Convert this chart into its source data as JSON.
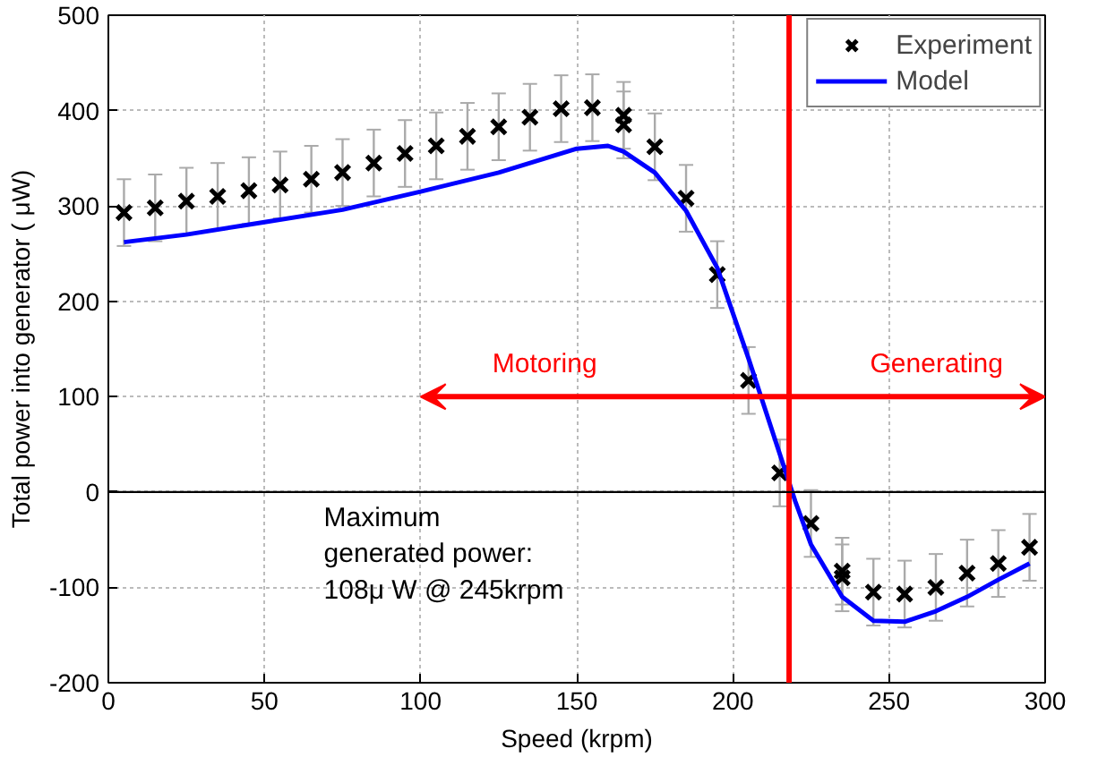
{
  "chart_data": {
    "type": "scatter",
    "xlabel": "Speed (krpm)",
    "ylabel": "Total power into generator ( μW)",
    "xlim": [
      0,
      300
    ],
    "ylim": [
      -200,
      500
    ],
    "xticks": [
      0,
      50,
      100,
      150,
      200,
      250,
      300
    ],
    "yticks": [
      -200,
      -100,
      0,
      100,
      200,
      300,
      400,
      500
    ],
    "grid": true,
    "legend": "top right",
    "series": [
      {
        "name": "Experiment",
        "marker": "cross",
        "color": "#000000",
        "x": [
          5,
          15,
          25,
          35,
          45,
          55,
          65,
          75,
          85,
          95,
          105,
          115,
          125,
          135,
          145,
          155,
          165,
          165,
          175,
          185,
          195,
          205,
          215,
          225,
          235,
          235,
          245,
          255,
          265,
          275,
          285,
          295
        ],
        "values": [
          293,
          298,
          305,
          310,
          316,
          322,
          328,
          335,
          345,
          355,
          363,
          373,
          383,
          393,
          402,
          403,
          395,
          385,
          362,
          308,
          228,
          117,
          20,
          -33,
          -83,
          -90,
          -105,
          -107,
          -100,
          -85,
          -75,
          -58
        ],
        "errors": [
          35,
          35,
          35,
          35,
          35,
          35,
          35,
          35,
          35,
          35,
          35,
          35,
          35,
          35,
          35,
          35,
          35,
          35,
          35,
          35,
          35,
          35,
          35,
          35,
          35,
          35,
          35,
          35,
          35,
          35,
          35,
          35
        ]
      },
      {
        "name": "Model",
        "type": "line",
        "line_style": "solid",
        "color": "#0000ff",
        "x": [
          5,
          25,
          50,
          75,
          100,
          125,
          150,
          160,
          165,
          175,
          185,
          195,
          205,
          215,
          220,
          225,
          235,
          245,
          255,
          265,
          275,
          285,
          295
        ],
        "values": [
          262,
          270,
          283,
          296,
          315,
          335,
          360,
          363,
          357,
          335,
          295,
          235,
          140,
          40,
          -10,
          -55,
          -110,
          -135,
          -136,
          -125,
          -110,
          -92,
          -75
        ]
      }
    ],
    "ref_lines": [
      {
        "axis": "x",
        "value": 218,
        "color": "#ff0000"
      },
      {
        "axis": "y",
        "value": 0,
        "color": "#000000"
      }
    ],
    "annotations": [
      "Motoring",
      "Generating",
      "Maximum\ngenerated power:\n108μ W @ 245krpm"
    ]
  }
}
